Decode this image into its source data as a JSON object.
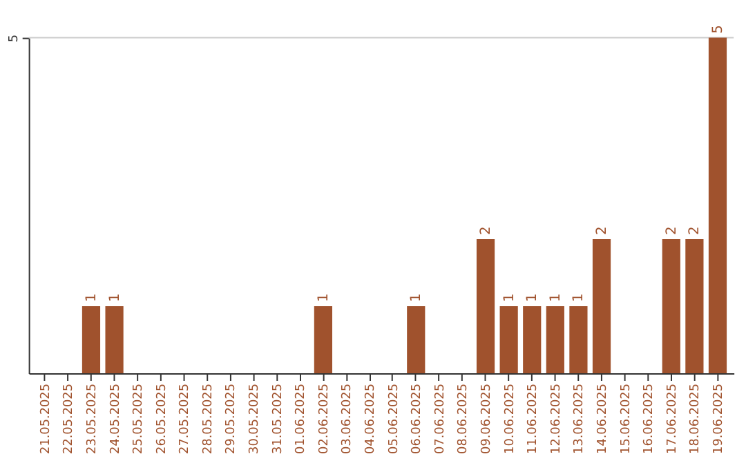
{
  "chart_data": {
    "type": "bar",
    "categories": [
      "21.05.2025",
      "22.05.2025",
      "23.05.2025",
      "24.05.2025",
      "25.05.2025",
      "26.05.2025",
      "27.05.2025",
      "28.05.2025",
      "29.05.2025",
      "30.05.2025",
      "31.05.2025",
      "01.06.2025",
      "02.06.2025",
      "03.06.2025",
      "04.06.2025",
      "05.06.2025",
      "06.06.2025",
      "07.06.2025",
      "08.06.2025",
      "09.06.2025",
      "10.06.2025",
      "11.06.2025",
      "12.06.2025",
      "13.06.2025",
      "14.06.2025",
      "15.06.2025",
      "16.06.2025",
      "17.06.2025",
      "18.06.2025",
      "19.06.2025"
    ],
    "values": [
      0,
      0,
      1,
      1,
      0,
      0,
      0,
      0,
      0,
      0,
      0,
      0,
      1,
      0,
      0,
      0,
      1,
      0,
      0,
      2,
      1,
      1,
      1,
      1,
      2,
      0,
      0,
      2,
      2,
      5
    ],
    "value_labels": [
      null,
      null,
      "1",
      "1",
      null,
      null,
      null,
      null,
      null,
      null,
      null,
      null,
      "1",
      null,
      null,
      null,
      "1",
      null,
      null,
      "2",
      "1",
      "1",
      "1",
      "1",
      "2",
      null,
      null,
      "2",
      "2",
      "5"
    ],
    "color": "#a0522d",
    "ylim": [
      0,
      5
    ],
    "yticks": [
      5
    ],
    "ref_lines": [
      {
        "axis": "y",
        "value": 5,
        "color": "#cccccc"
      }
    ]
  }
}
